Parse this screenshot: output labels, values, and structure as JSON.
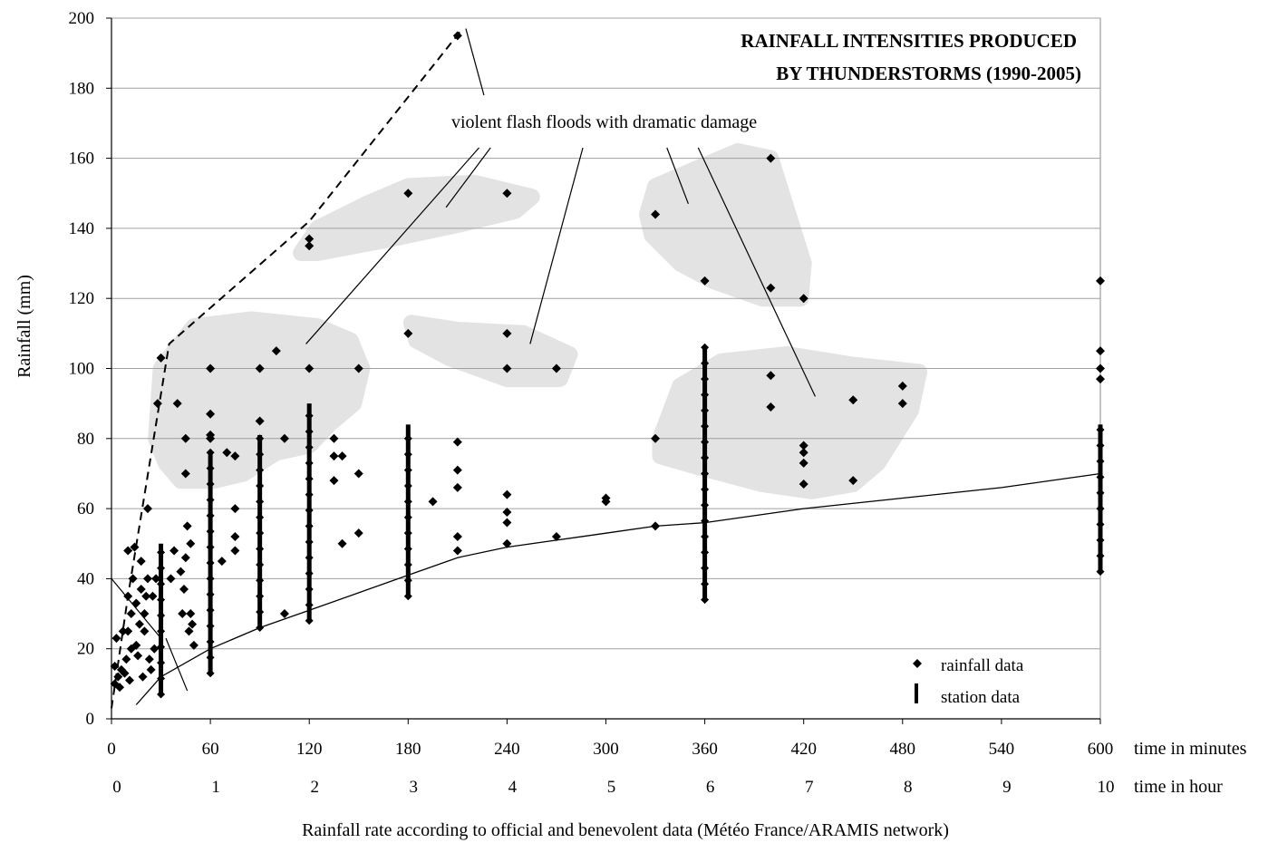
{
  "chart_data": {
    "type": "scatter",
    "title": "RAINFALL INTENSITIES PRODUCED",
    "title_line2": "BY THUNDERSTORMS (1990-2005)",
    "ylabel": "Rainfall (mm)",
    "xlabel": "Rainfall rate according to official and benevolent data (Météo France/ARAMIS network)",
    "x_unit_minutes": "time in minutes",
    "x_unit_hours": "time in hour",
    "xlim": [
      0,
      600
    ],
    "ylim": [
      0,
      200
    ],
    "x_ticks_minutes": [
      "0",
      "60",
      "120",
      "180",
      "240",
      "300",
      "360",
      "420",
      "480",
      "540",
      "600"
    ],
    "x_ticks_hours": [
      "0",
      "1",
      "2",
      "3",
      "4",
      "5",
      "6",
      "7",
      "8",
      "9",
      "10"
    ],
    "y_ticks": [
      "0",
      "20",
      "40",
      "60",
      "80",
      "100",
      "120",
      "140",
      "160",
      "180",
      "200"
    ],
    "grid": "horizontal",
    "annotation": "violent flash floods with dramatic damage",
    "legend": {
      "placement": "bottom-right",
      "items": [
        {
          "label": "rainfall data",
          "marker": "diamond"
        },
        {
          "label": "station data",
          "marker": "bar"
        }
      ]
    },
    "series": [
      {
        "name": "rainfall data",
        "points": [
          [
            2,
            10
          ],
          [
            2,
            15
          ],
          [
            3,
            23
          ],
          [
            4,
            12
          ],
          [
            5,
            9
          ],
          [
            6,
            14
          ],
          [
            7,
            25
          ],
          [
            8,
            13
          ],
          [
            9,
            17
          ],
          [
            10,
            48
          ],
          [
            10,
            35
          ],
          [
            10,
            25
          ],
          [
            11,
            11
          ],
          [
            12,
            20
          ],
          [
            12,
            30
          ],
          [
            13,
            40
          ],
          [
            14,
            49
          ],
          [
            15,
            33
          ],
          [
            15,
            21
          ],
          [
            16,
            18
          ],
          [
            17,
            27
          ],
          [
            18,
            37
          ],
          [
            18,
            45
          ],
          [
            19,
            12
          ],
          [
            20,
            30
          ],
          [
            20,
            25
          ],
          [
            21,
            35
          ],
          [
            22,
            60
          ],
          [
            22,
            40
          ],
          [
            23,
            17
          ],
          [
            24,
            14
          ],
          [
            25,
            35
          ],
          [
            26,
            20
          ],
          [
            27,
            40
          ],
          [
            28,
            90
          ],
          [
            30,
            103
          ],
          [
            36,
            40
          ],
          [
            38,
            48
          ],
          [
            40,
            90
          ],
          [
            42,
            42
          ],
          [
            43,
            30
          ],
          [
            44,
            37
          ],
          [
            45,
            46
          ],
          [
            45,
            80
          ],
          [
            45,
            70
          ],
          [
            46,
            55
          ],
          [
            47,
            25
          ],
          [
            48,
            50
          ],
          [
            48,
            30
          ],
          [
            49,
            27
          ],
          [
            50,
            21
          ],
          [
            60,
            100
          ],
          [
            60,
            87
          ],
          [
            60,
            81
          ],
          [
            60,
            80
          ],
          [
            67,
            45
          ],
          [
            70,
            76
          ],
          [
            75,
            75
          ],
          [
            75,
            60
          ],
          [
            75,
            52
          ],
          [
            75,
            48
          ],
          [
            90,
            100
          ],
          [
            90,
            85
          ],
          [
            100,
            105
          ],
          [
            105,
            80
          ],
          [
            105,
            30
          ],
          [
            120,
            137
          ],
          [
            120,
            135
          ],
          [
            120,
            100
          ],
          [
            135,
            80
          ],
          [
            135,
            75
          ],
          [
            135,
            68
          ],
          [
            140,
            75
          ],
          [
            140,
            50
          ],
          [
            150,
            100
          ],
          [
            150,
            70
          ],
          [
            150,
            53
          ],
          [
            180,
            150
          ],
          [
            180,
            110
          ],
          [
            195,
            62
          ],
          [
            210,
            79
          ],
          [
            210,
            71
          ],
          [
            210,
            66
          ],
          [
            210,
            52
          ],
          [
            210,
            48
          ],
          [
            210,
            195
          ],
          [
            240,
            150
          ],
          [
            240,
            110
          ],
          [
            240,
            100
          ],
          [
            240,
            64
          ],
          [
            240,
            59
          ],
          [
            240,
            56
          ],
          [
            240,
            50
          ],
          [
            270,
            100
          ],
          [
            270,
            52
          ],
          [
            300,
            63
          ],
          [
            300,
            62
          ],
          [
            330,
            144
          ],
          [
            330,
            80
          ],
          [
            330,
            55
          ],
          [
            360,
            125
          ],
          [
            400,
            160
          ],
          [
            400,
            123
          ],
          [
            400,
            98
          ],
          [
            400,
            89
          ],
          [
            420,
            120
          ],
          [
            420,
            78
          ],
          [
            420,
            76
          ],
          [
            420,
            73
          ],
          [
            420,
            67
          ],
          [
            450,
            91
          ],
          [
            450,
            68
          ],
          [
            480,
            95
          ],
          [
            480,
            90
          ],
          [
            600,
            125
          ],
          [
            600,
            105
          ],
          [
            600,
            100
          ],
          [
            600,
            97
          ]
        ]
      },
      {
        "name": "station data",
        "ranges": [
          [
            30,
            7,
            50
          ],
          [
            60,
            13,
            76
          ],
          [
            90,
            26,
            81
          ],
          [
            120,
            28,
            90
          ],
          [
            180,
            35,
            84
          ],
          [
            360,
            34,
            106
          ],
          [
            600,
            42,
            84
          ]
        ]
      },
      {
        "name": "",
        "style": "dashed",
        "points": [
          [
            0,
            3
          ],
          [
            10,
            35
          ],
          [
            35,
            107
          ],
          [
            120,
            142
          ],
          [
            213,
            197
          ]
        ]
      },
      {
        "name": "",
        "style": "solid",
        "points": [
          [
            15,
            4
          ],
          [
            30,
            12
          ],
          [
            60,
            20
          ],
          [
            90,
            26
          ],
          [
            120,
            31
          ],
          [
            150,
            36
          ],
          [
            180,
            41
          ],
          [
            210,
            46
          ],
          [
            240,
            49
          ],
          [
            270,
            51
          ],
          [
            300,
            53
          ],
          [
            330,
            55
          ],
          [
            360,
            56
          ],
          [
            420,
            60
          ],
          [
            480,
            63
          ],
          [
            540,
            66
          ],
          [
            600,
            70
          ]
        ]
      }
    ],
    "highlight_regions": [
      {
        "points": [
          [
            27,
            80
          ],
          [
            30,
            100
          ],
          [
            50,
            112
          ],
          [
            85,
            114
          ],
          [
            125,
            112
          ],
          [
            145,
            108
          ],
          [
            152,
            100
          ],
          [
            147,
            90
          ],
          [
            132,
            84
          ],
          [
            120,
            78
          ],
          [
            100,
            76
          ],
          [
            80,
            70
          ],
          [
            62,
            68
          ],
          [
            42,
            68
          ],
          [
            33,
            73
          ]
        ]
      },
      {
        "points": [
          [
            115,
            133
          ],
          [
            125,
            140
          ],
          [
            155,
            147
          ],
          [
            180,
            152
          ],
          [
            220,
            153
          ],
          [
            255,
            149
          ],
          [
            245,
            145
          ],
          [
            210,
            141
          ],
          [
            170,
            137
          ],
          [
            125,
            133
          ]
        ]
      },
      {
        "points": [
          [
            182,
            113
          ],
          [
            210,
            111
          ],
          [
            250,
            110
          ],
          [
            278,
            104
          ],
          [
            272,
            97
          ],
          [
            240,
            97
          ],
          [
            205,
            103
          ],
          [
            185,
            108
          ]
        ]
      },
      {
        "points": [
          [
            325,
            144
          ],
          [
            330,
            152
          ],
          [
            355,
            157
          ],
          [
            380,
            162
          ],
          [
            400,
            160
          ],
          [
            410,
            145
          ],
          [
            420,
            130
          ],
          [
            418,
            120
          ],
          [
            395,
            120
          ],
          [
            365,
            125
          ],
          [
            345,
            130
          ],
          [
            328,
            138
          ]
        ]
      },
      {
        "points": [
          [
            333,
            80
          ],
          [
            345,
            95
          ],
          [
            370,
            102
          ],
          [
            410,
            104
          ],
          [
            450,
            101
          ],
          [
            490,
            99
          ],
          [
            485,
            88
          ],
          [
            465,
            73
          ],
          [
            450,
            67
          ],
          [
            425,
            65
          ],
          [
            395,
            67
          ],
          [
            355,
            72
          ],
          [
            333,
            75
          ]
        ]
      }
    ],
    "leader_lines": [
      {
        "from": [
          215,
          197
        ],
        "to": [
          226,
          178
        ]
      },
      {
        "from": [
          223,
          163
        ],
        "to": [
          118,
          107
        ]
      },
      {
        "from": [
          230,
          163
        ],
        "to": [
          203,
          146
        ]
      },
      {
        "from": [
          286,
          163
        ],
        "to": [
          254,
          107
        ]
      },
      {
        "from": [
          337,
          163
        ],
        "to": [
          350,
          147
        ]
      },
      {
        "from": [
          356,
          163
        ],
        "to": [
          427,
          92
        ]
      }
    ],
    "small_leaders": [
      {
        "from": [
          0,
          40
        ],
        "to": [
          30,
          23
        ]
      },
      {
        "from": [
          33,
          23
        ],
        "to": [
          46,
          8
        ]
      }
    ]
  }
}
